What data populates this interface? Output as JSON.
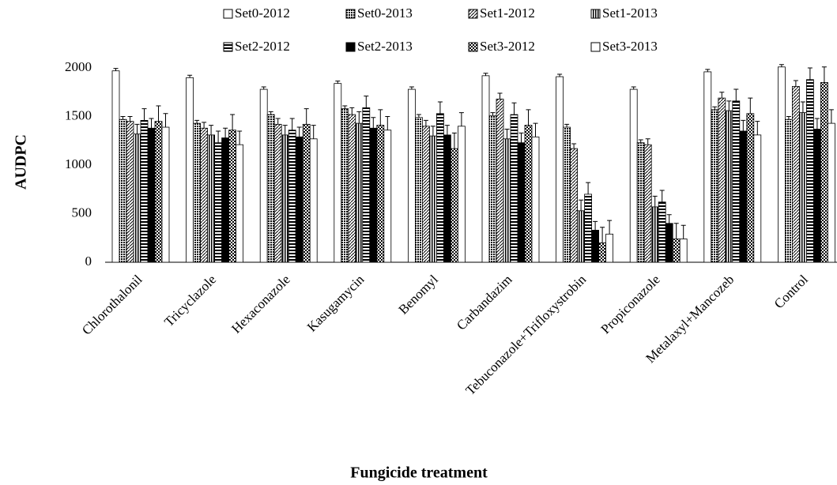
{
  "chart_data": {
    "type": "bar",
    "xlabel": "Fungicide treatment",
    "ylabel": "AUDPC",
    "categories": [
      "Chlorothalonil",
      "Tricyclazole",
      "Hexaconazole",
      "Kasugamycin",
      "Benomyl",
      "Carbandazim",
      "Tebuconazole+Trifloxystrobin",
      "Propiconazole",
      "Metalaxyl+Mancozeb",
      "Control"
    ],
    "ylim": [
      0,
      2000
    ],
    "yticks": [
      0,
      500,
      1000,
      1500,
      2000
    ],
    "grid": false,
    "series": [
      {
        "name": "Set0-2012",
        "color": "#ffffff",
        "pattern": "solid",
        "values": [
          1970,
          1900,
          1780,
          1840,
          1780,
          1920,
          1910,
          1780,
          1960,
          2010
        ],
        "errors": [
          25,
          25,
          25,
          25,
          25,
          25,
          25,
          25,
          25,
          25
        ]
      },
      {
        "name": "Set0-2013",
        "color": "#000000",
        "pattern": "crosshatch",
        "values": [
          1470,
          1430,
          1520,
          1580,
          1490,
          1510,
          1390,
          1230,
          1570,
          1470
        ],
        "errors": [
          30,
          30,
          30,
          30,
          30,
          30,
          30,
          30,
          30,
          30
        ]
      },
      {
        "name": "Set1-2012",
        "color": "#000000",
        "pattern": "diagonal",
        "values": [
          1450,
          1380,
          1420,
          1520,
          1400,
          1680,
          1170,
          1210,
          1690,
          1810
        ],
        "errors": [
          50,
          60,
          60,
          70,
          60,
          60,
          50,
          60,
          60,
          60
        ]
      },
      {
        "name": "Set1-2013",
        "color": "#000000",
        "pattern": "vertical",
        "values": [
          1320,
          1310,
          1310,
          1430,
          1300,
          1270,
          530,
          570,
          1560,
          1540
        ],
        "errors": [
          100,
          100,
          100,
          120,
          100,
          100,
          110,
          110,
          100,
          110
        ]
      },
      {
        "name": "Set2-2012",
        "color": "#000000",
        "pattern": "horizontal",
        "values": [
          1460,
          1230,
          1360,
          1590,
          1530,
          1520,
          700,
          620,
          1660,
          1880
        ],
        "errors": [
          120,
          120,
          120,
          120,
          120,
          120,
          120,
          120,
          120,
          120
        ]
      },
      {
        "name": "Set2-2013",
        "color": "#000000",
        "pattern": "solid",
        "values": [
          1380,
          1280,
          1290,
          1380,
          1310,
          1230,
          330,
          400,
          1350,
          1370
        ],
        "errors": [
          100,
          100,
          100,
          110,
          100,
          100,
          90,
          90,
          110,
          110
        ]
      },
      {
        "name": "Set3-2012",
        "color": "#000000",
        "pattern": "checker",
        "values": [
          1450,
          1360,
          1420,
          1410,
          1170,
          1410,
          200,
          240,
          1530,
          1850
        ],
        "errors": [
          160,
          160,
          160,
          160,
          160,
          160,
          160,
          160,
          160,
          160
        ]
      },
      {
        "name": "Set3-2013",
        "color": "#ffffff",
        "pattern": "solid",
        "values": [
          1390,
          1210,
          1270,
          1360,
          1400,
          1290,
          290,
          240,
          1310,
          1430
        ],
        "errors": [
          140,
          140,
          140,
          140,
          140,
          140,
          140,
          140,
          140,
          140
        ]
      }
    ]
  }
}
